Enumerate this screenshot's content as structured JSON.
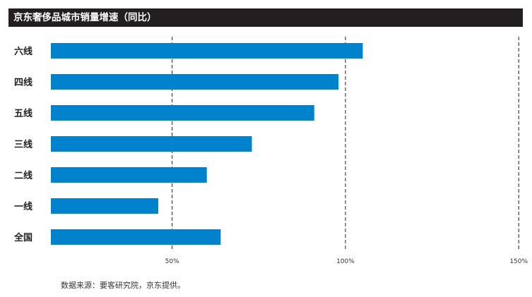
{
  "chart_data": {
    "type": "bar",
    "orientation": "horizontal",
    "title": "京东奢侈品城市销量增速（同比）",
    "categories": [
      "六线",
      "四线",
      "五线",
      "三线",
      "二线",
      "一线",
      "全国"
    ],
    "values": [
      105,
      98,
      91,
      73,
      60,
      46,
      64
    ],
    "unit": "%",
    "xticks": [
      50,
      100,
      150
    ],
    "xtick_labels": [
      "50%",
      "100%",
      "150%"
    ],
    "xlim": [
      15,
      152
    ],
    "grid": "dashed vertical lines at ticks",
    "bar_color": "#0083cc",
    "source": "数据来源：要客研究院，京东提供。"
  }
}
